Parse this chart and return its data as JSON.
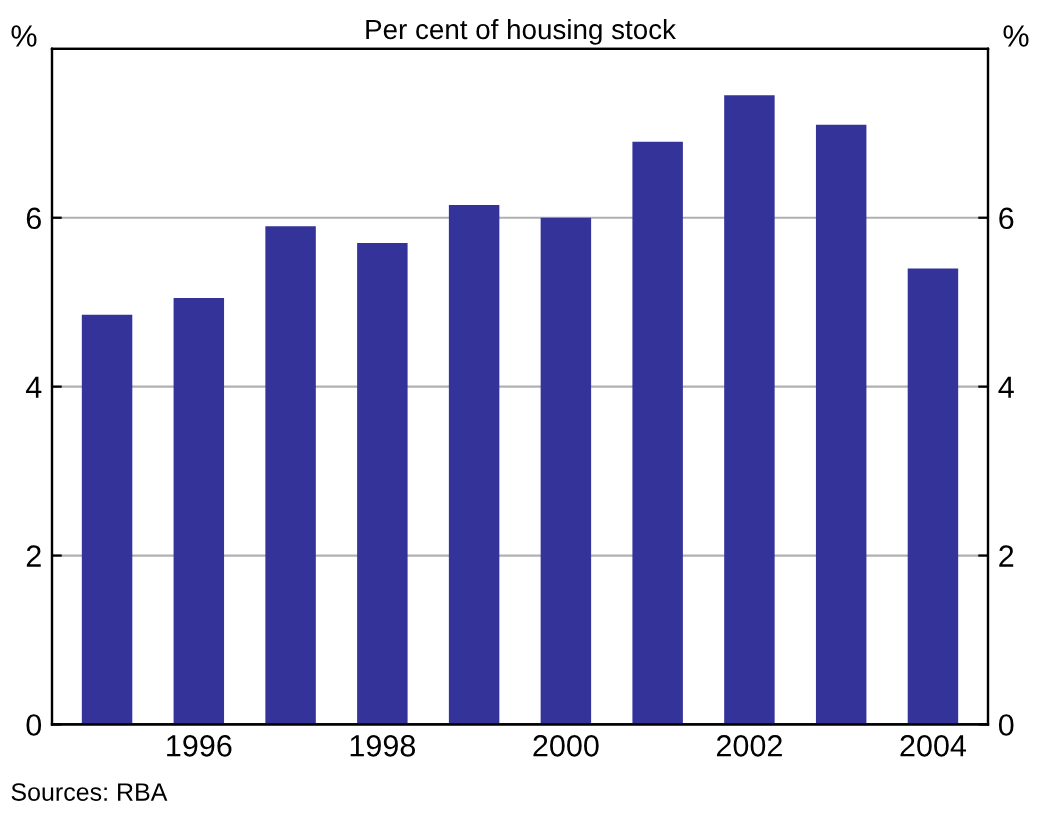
{
  "chart_data": {
    "type": "bar",
    "subtitle": "Per cent of housing stock",
    "ylabel": "%",
    "y2label": "%",
    "categories": [
      null,
      "1996",
      null,
      "1998",
      null,
      "2000",
      null,
      "2002",
      null,
      "2004"
    ],
    "values": [
      4.85,
      5.05,
      5.9,
      5.7,
      6.15,
      6.0,
      6.9,
      7.45,
      7.1,
      5.4
    ],
    "color": "#333399",
    "ylim": [
      0,
      8
    ],
    "yticks": [
      0,
      2,
      4,
      6
    ],
    "y2lim": [
      0,
      8
    ],
    "y2ticks": [
      0,
      2,
      4,
      6
    ],
    "grid": "y",
    "annotations": [
      "Sources: RBA"
    ]
  }
}
